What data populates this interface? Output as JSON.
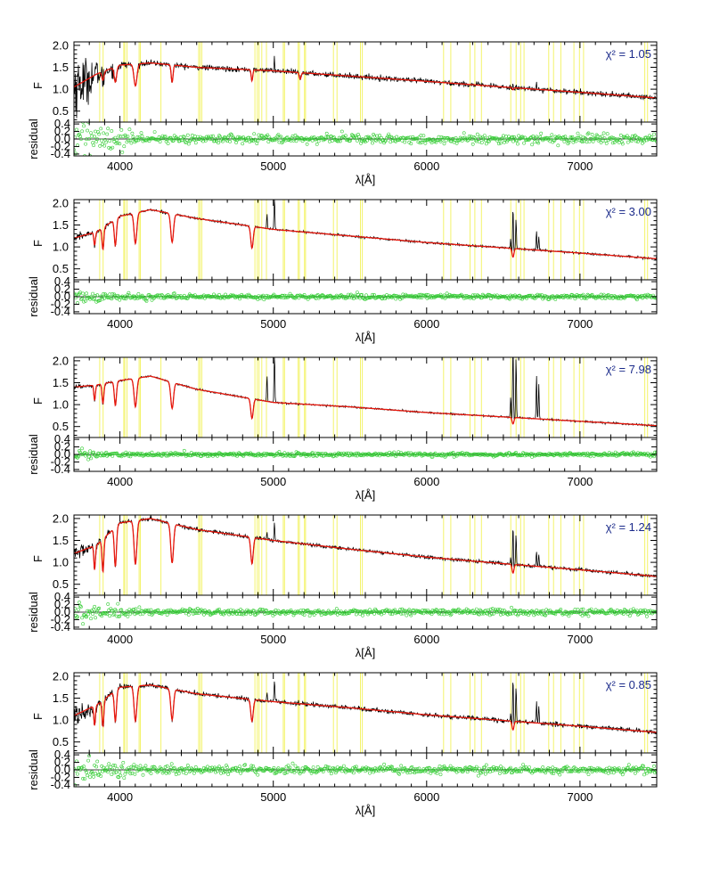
{
  "chart_data": {
    "type": "line",
    "x_range": [
      3700,
      7500
    ],
    "x_ticks": [
      4000,
      5000,
      6000,
      7000
    ],
    "x_tick_labels": [
      "4000",
      "5000",
      "6000",
      "7000"
    ],
    "xlabel": "λ[Å]",
    "flux_ylabel": "F",
    "flux_ylim": [
      0.25,
      2.08
    ],
    "flux_y_ticks": [
      0.5,
      1.0,
      1.5,
      2.0
    ],
    "flux_y_tick_labels": [
      "0.5",
      "1.0",
      "1.5",
      "2.0"
    ],
    "residual_ylabel": "residual",
    "residual_ylim": [
      -0.45,
      0.45
    ],
    "residual_y_ticks": [
      0.4,
      0.2,
      0.0,
      -0.2,
      -0.4
    ],
    "residual_y_tick_labels": [
      "0.4",
      "0.2",
      "0.0",
      "-0.2",
      "-0.4"
    ],
    "colors": {
      "observed": "#000000",
      "model": "#e8170c",
      "residual": "#33cc33",
      "masked_regions": "#f2f25a",
      "chi_label": "#1a2a8a"
    },
    "masked_wavelengths": [
      3868,
      3890,
      4025,
      4032,
      4046,
      4125,
      4133,
      4267,
      4513,
      4522,
      4534,
      4880,
      4895,
      4907,
      4925,
      4955,
      5065,
      5073,
      5162,
      5170,
      5203,
      5210,
      5392,
      5415,
      5568,
      5580,
      6110,
      6157,
      6283,
      6314,
      6357,
      6548,
      6583,
      6613,
      6635,
      6796,
      6827,
      6875,
      6960,
      6996,
      7023,
      7422,
      7440
    ],
    "panels": [
      {
        "chi_label": "χ² = 1.05",
        "continuum": [
          [
            3700,
            1.05
          ],
          [
            3850,
            1.35
          ],
          [
            4000,
            1.55
          ],
          [
            4200,
            1.6
          ],
          [
            4500,
            1.5
          ],
          [
            5000,
            1.42
          ],
          [
            5500,
            1.3
          ],
          [
            6000,
            1.18
          ],
          [
            6500,
            1.05
          ],
          [
            7000,
            0.93
          ],
          [
            7500,
            0.8
          ]
        ],
        "absorption_lines": [
          [
            3889,
            0.2,
            7
          ],
          [
            3970,
            0.35,
            8
          ],
          [
            4101,
            0.5,
            10
          ],
          [
            4340,
            0.4,
            6
          ],
          [
            4861,
            0.25,
            5
          ],
          [
            5175,
            0.15,
            6
          ],
          [
            6563,
            0.05,
            4
          ]
        ],
        "emission_lines": [
          [
            4959,
            0.1,
            2
          ],
          [
            5007,
            0.3,
            2
          ],
          [
            6563,
            0.15,
            2
          ],
          [
            6583,
            0.1,
            2
          ],
          [
            6716,
            0.15,
            2
          ],
          [
            6731,
            0.12,
            2
          ]
        ],
        "obs_noise": 0.03,
        "obs_noise_blue": 0.35,
        "residual_scatter": 0.06,
        "residual_scatter_blue": 0.25
      },
      {
        "chi_label": "χ² = 3.00",
        "continuum": [
          [
            3700,
            1.2
          ],
          [
            3850,
            1.35
          ],
          [
            4000,
            1.7
          ],
          [
            4200,
            1.85
          ],
          [
            4500,
            1.65
          ],
          [
            5000,
            1.4
          ],
          [
            5500,
            1.25
          ],
          [
            6000,
            1.1
          ],
          [
            6500,
            0.98
          ],
          [
            7000,
            0.86
          ],
          [
            7500,
            0.73
          ]
        ],
        "absorption_lines": [
          [
            3835,
            0.3,
            5
          ],
          [
            3889,
            0.5,
            6
          ],
          [
            3970,
            0.6,
            7
          ],
          [
            4101,
            0.7,
            9
          ],
          [
            4340,
            0.65,
            9
          ],
          [
            4861,
            0.5,
            8
          ],
          [
            6563,
            0.2,
            6
          ]
        ],
        "emission_lines": [
          [
            4959,
            0.35,
            2.5
          ],
          [
            5007,
            0.9,
            2.5
          ],
          [
            6548,
            0.2,
            2.5
          ],
          [
            6563,
            1.2,
            2.5
          ],
          [
            6583,
            0.7,
            2.5
          ],
          [
            6716,
            0.45,
            2.5
          ],
          [
            6731,
            0.35,
            2.5
          ]
        ],
        "obs_noise": 0.012,
        "obs_noise_blue": 0.04,
        "residual_scatter": 0.03,
        "residual_scatter_blue": 0.05
      },
      {
        "chi_label": "χ² = 7.98",
        "continuum": [
          [
            3700,
            1.4
          ],
          [
            3850,
            1.45
          ],
          [
            4000,
            1.55
          ],
          [
            4200,
            1.65
          ],
          [
            4500,
            1.35
          ],
          [
            5000,
            1.05
          ],
          [
            5500,
            0.95
          ],
          [
            6000,
            0.82
          ],
          [
            6500,
            0.72
          ],
          [
            7000,
            0.62
          ],
          [
            7500,
            0.52
          ]
        ],
        "absorption_lines": [
          [
            3835,
            0.35,
            5
          ],
          [
            3889,
            0.45,
            6
          ],
          [
            3970,
            0.55,
            7
          ],
          [
            4101,
            0.65,
            9
          ],
          [
            4340,
            0.6,
            9
          ],
          [
            4861,
            0.45,
            8
          ],
          [
            6563,
            0.15,
            6
          ]
        ],
        "emission_lines": [
          [
            4959,
            0.6,
            2.5
          ],
          [
            5007,
            1.4,
            2.5
          ],
          [
            6548,
            0.5,
            2.5
          ],
          [
            6563,
            2.5,
            2.5
          ],
          [
            6583,
            1.4,
            2.5
          ],
          [
            6716,
            1.0,
            2.5
          ],
          [
            6731,
            0.8,
            2.5
          ]
        ],
        "obs_noise": 0.01,
        "obs_noise_blue": 0.03,
        "residual_scatter": 0.025,
        "residual_scatter_blue": 0.04
      },
      {
        "chi_label": "χ² = 1.24",
        "continuum": [
          [
            3700,
            1.2
          ],
          [
            3850,
            1.4
          ],
          [
            4000,
            1.9
          ],
          [
            4200,
            2.0
          ],
          [
            4500,
            1.75
          ],
          [
            5000,
            1.5
          ],
          [
            5500,
            1.3
          ],
          [
            6000,
            1.12
          ],
          [
            6500,
            0.97
          ],
          [
            7000,
            0.83
          ],
          [
            7500,
            0.68
          ]
        ],
        "absorption_lines": [
          [
            3835,
            0.55,
            5
          ],
          [
            3889,
            0.75,
            6
          ],
          [
            3970,
            0.9,
            7
          ],
          [
            4101,
            1.0,
            9
          ],
          [
            4340,
            0.9,
            9
          ],
          [
            4861,
            0.6,
            8
          ],
          [
            6563,
            0.2,
            6
          ]
        ],
        "emission_lines": [
          [
            4959,
            0.15,
            2.5
          ],
          [
            5007,
            0.4,
            2.5
          ],
          [
            6548,
            0.15,
            2.5
          ],
          [
            6563,
            1.1,
            2.5
          ],
          [
            6583,
            0.7,
            2.5
          ],
          [
            6716,
            0.35,
            2.5
          ],
          [
            6731,
            0.28,
            2.5
          ]
        ],
        "obs_noise": 0.02,
        "obs_noise_blue": 0.08,
        "residual_scatter": 0.04,
        "residual_scatter_blue": 0.1
      },
      {
        "chi_label": "χ² = 0.85",
        "continuum": [
          [
            3700,
            1.1
          ],
          [
            3850,
            1.35
          ],
          [
            4000,
            1.75
          ],
          [
            4200,
            1.8
          ],
          [
            4500,
            1.6
          ],
          [
            5000,
            1.42
          ],
          [
            5500,
            1.28
          ],
          [
            6000,
            1.12
          ],
          [
            6500,
            0.99
          ],
          [
            7000,
            0.86
          ],
          [
            7500,
            0.72
          ]
        ],
        "absorption_lines": [
          [
            3835,
            0.45,
            5
          ],
          [
            3889,
            0.6,
            6
          ],
          [
            3970,
            0.7,
            7
          ],
          [
            4101,
            0.8,
            9
          ],
          [
            4340,
            0.7,
            9
          ],
          [
            4861,
            0.5,
            8
          ],
          [
            6563,
            0.2,
            6
          ]
        ],
        "emission_lines": [
          [
            4959,
            0.2,
            2.5
          ],
          [
            5007,
            0.5,
            2.5
          ],
          [
            6548,
            0.2,
            2.5
          ],
          [
            6563,
            1.3,
            2.5
          ],
          [
            6583,
            0.8,
            2.5
          ],
          [
            6716,
            0.5,
            2.5
          ],
          [
            6731,
            0.4,
            2.5
          ]
        ],
        "obs_noise": 0.025,
        "obs_noise_blue": 0.12,
        "residual_scatter": 0.05,
        "residual_scatter_blue": 0.15
      }
    ]
  }
}
